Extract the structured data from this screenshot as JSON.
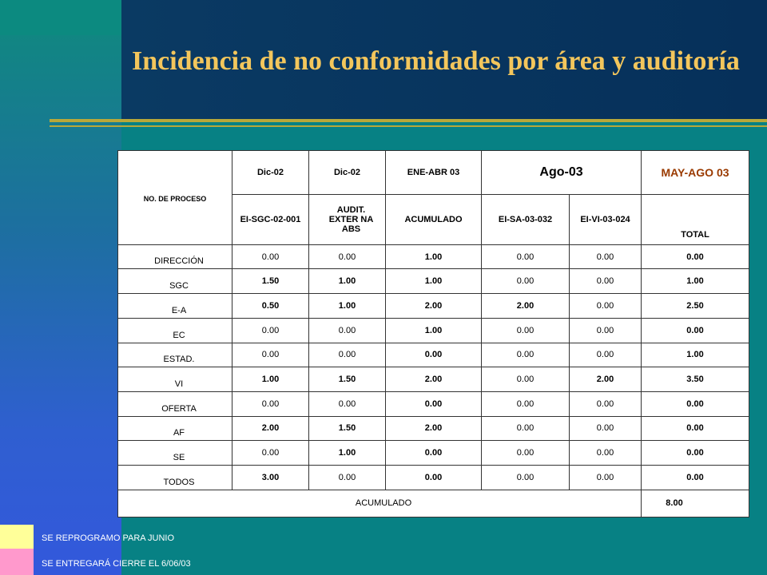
{
  "title": "Incidencia de no conformidades por área y auditoría",
  "table": {
    "process_header": "NO. DE PROCESO",
    "period_headers": [
      "Dic-02",
      "Dic-02",
      "ENE-ABR 03",
      "Ago-03",
      "MAY-AGO 03"
    ],
    "audit_headers": [
      "EI-SGC-02-001",
      "AUDIT. EXTER NA ABS",
      "ACUMULADO",
      "EI-SA-03-032",
      "EI-VI-03-024",
      "TOTAL"
    ],
    "rows": [
      {
        "label": "DIRECCIÓN",
        "values": [
          "0.00",
          "0.00",
          "1.00",
          "0.00",
          "0.00",
          "0.00"
        ]
      },
      {
        "label": "SGC",
        "values": [
          "1.50",
          "1.00",
          "1.00",
          "0.00",
          "0.00",
          "1.00"
        ]
      },
      {
        "label": "E-A",
        "values": [
          "0.50",
          "1.00",
          "2.00",
          "2.00",
          "0.00",
          "2.50"
        ]
      },
      {
        "label": "EC",
        "values": [
          "0.00",
          "0.00",
          "1.00",
          "0.00",
          "0.00",
          "0.00"
        ]
      },
      {
        "label": "ESTAD.",
        "values": [
          "0.00",
          "0.00",
          "0.00",
          "0.00",
          "0.00",
          "1.00"
        ]
      },
      {
        "label": "VI",
        "values": [
          "1.00",
          "1.50",
          "2.00",
          "0.00",
          "2.00",
          "3.50"
        ]
      },
      {
        "label": "OFERTA",
        "values": [
          "0.00",
          "0.00",
          "0.00",
          "0.00",
          "0.00",
          "0.00"
        ]
      },
      {
        "label": "AF",
        "values": [
          "2.00",
          "1.50",
          "2.00",
          "0.00",
          "0.00",
          "0.00"
        ]
      },
      {
        "label": "SE",
        "values": [
          "0.00",
          "1.00",
          "0.00",
          "0.00",
          "0.00",
          "0.00"
        ]
      },
      {
        "label": "TODOS",
        "values": [
          "3.00",
          "0.00",
          "0.00",
          "0.00",
          "0.00",
          "0.00"
        ]
      }
    ],
    "accumulated_label": "ACUMULADO",
    "accumulated_total": "8.00"
  },
  "legend": {
    "yellow_note": "SE REPROGRAMO  PARA JUNIO",
    "pink_note": "SE ENTREGARÁ  CIERRE  EL 6/06/03",
    "yellow_color": "#ffff99",
    "pink_color": "#ff99cc"
  },
  "cell_styles": [
    [
      "",
      "",
      "red",
      "",
      "",
      "red"
    ],
    [
      "red",
      "red",
      "red",
      "",
      "",
      "red"
    ],
    [
      "red",
      "red",
      "red",
      "red",
      "",
      "red"
    ],
    [
      "",
      "",
      "red",
      "",
      "",
      "red"
    ],
    [
      "",
      "",
      "red",
      "",
      "wht",
      "red"
    ],
    [
      "red",
      "red",
      "red",
      "",
      "red",
      "red"
    ],
    [
      "",
      "",
      "red",
      "",
      "",
      "red"
    ],
    [
      "red",
      "red",
      "red",
      "",
      "",
      "red"
    ],
    [
      "",
      "red",
      "red",
      "",
      "",
      "red"
    ],
    [
      "red",
      "wht",
      "red",
      "",
      "",
      "red"
    ]
  ]
}
